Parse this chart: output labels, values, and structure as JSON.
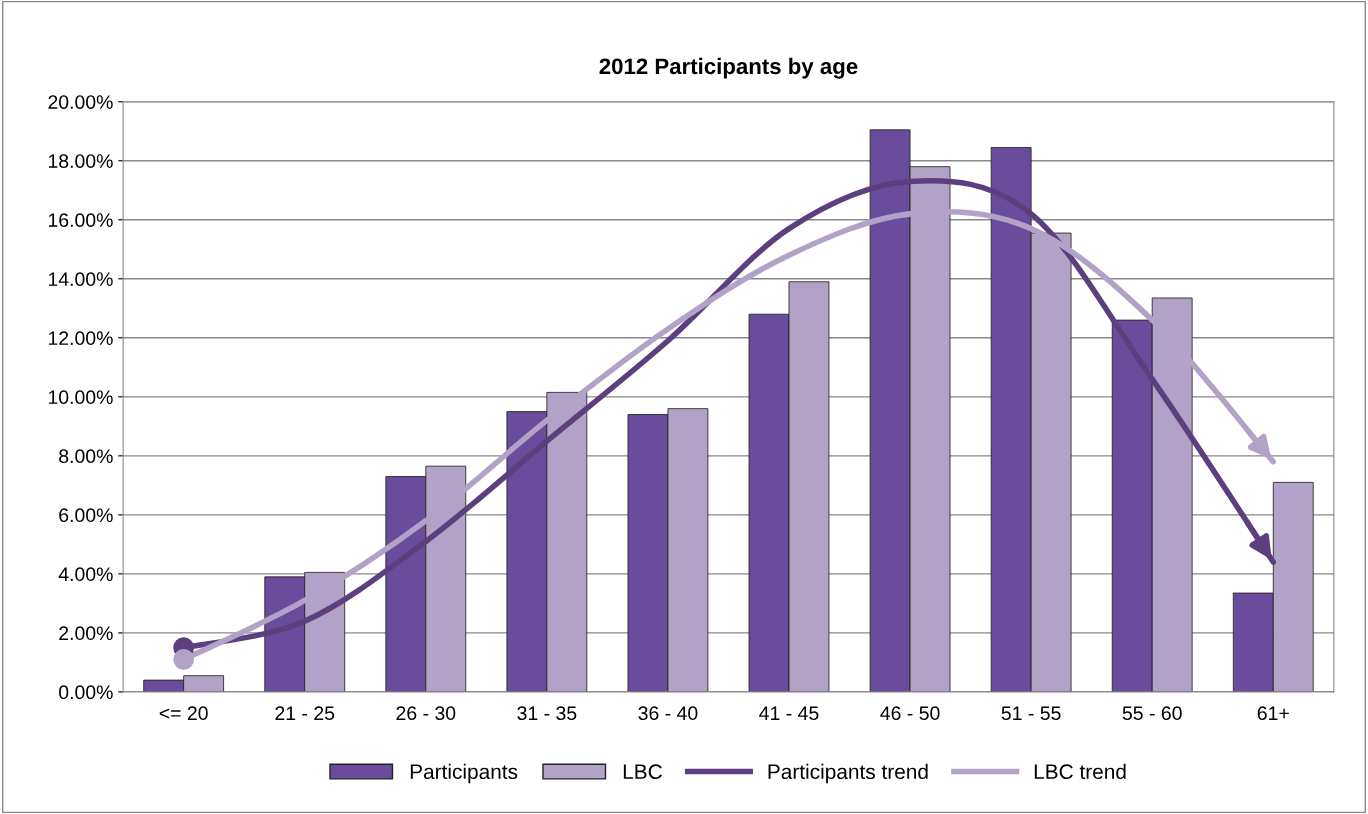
{
  "chart_data": {
    "type": "bar",
    "title": "2012 Participants by age",
    "categories": [
      "<= 20",
      "21 - 25",
      "26 - 30",
      "31 - 35",
      "36 - 40",
      "41 - 45",
      "46 - 50",
      "51 - 55",
      "55 - 60",
      "61+"
    ],
    "series": [
      {
        "name": "Participants",
        "color": "#6a4c9c",
        "values": [
          0.4,
          3.9,
          7.3,
          9.5,
          9.4,
          12.8,
          19.05,
          18.45,
          12.6,
          3.35
        ]
      },
      {
        "name": "LBC",
        "color": "#b3a2c7",
        "values": [
          0.55,
          4.05,
          7.65,
          10.15,
          9.6,
          13.9,
          17.8,
          15.55,
          13.35,
          7.1
        ]
      },
      {
        "name": "Participants trend",
        "type": "line",
        "color": "#5c3f7f",
        "values": [
          1.5,
          2.4,
          5.1,
          8.5,
          11.9,
          15.7,
          17.3,
          16.2,
          10.6,
          4.4
        ]
      },
      {
        "name": "LBC trend",
        "type": "line",
        "color": "#b3a2c7",
        "values": [
          1.1,
          3.1,
          5.8,
          9.2,
          12.3,
          14.8,
          16.2,
          15.7,
          12.6,
          7.8
        ]
      }
    ],
    "ylim": [
      0,
      20
    ],
    "yticks": [
      {
        "value": 0,
        "label": "0.00%"
      },
      {
        "value": 2,
        "label": "2.00%"
      },
      {
        "value": 4,
        "label": "4.00%"
      },
      {
        "value": 6,
        "label": "6.00%"
      },
      {
        "value": 8,
        "label": "8.00%"
      },
      {
        "value": 10,
        "label": "10.00%"
      },
      {
        "value": 12,
        "label": "12.00%"
      },
      {
        "value": 14,
        "label": "14.00%"
      },
      {
        "value": 16,
        "label": "16.00%"
      },
      {
        "value": 18,
        "label": "18.00%"
      },
      {
        "value": 20,
        "label": "20.00%"
      }
    ],
    "grid": "y",
    "legend": "bottom",
    "line_style": "solid"
  }
}
